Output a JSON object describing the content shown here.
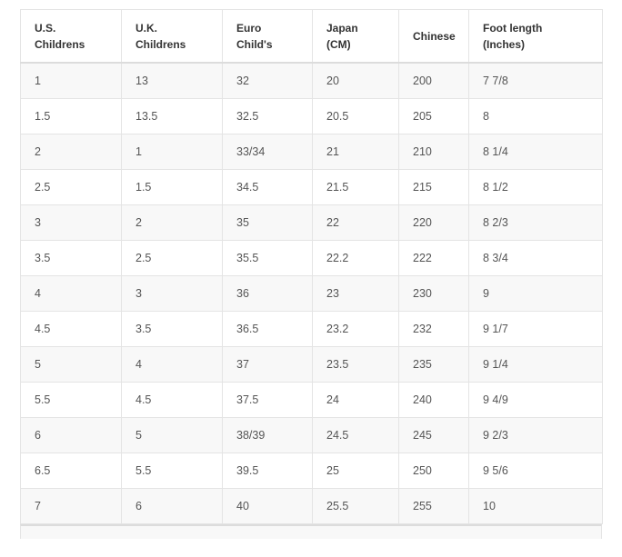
{
  "table": {
    "header": [
      "U.S.\nChildrens",
      "U.K.\nChildrens",
      "Euro\nChild's",
      "Japan\n(CM)",
      "Chinese",
      "Foot length\n(Inches)"
    ],
    "rows": [
      [
        "1",
        "13",
        "32",
        "20",
        "200",
        "7 7/8"
      ],
      [
        "1.5",
        "13.5",
        "32.5",
        "20.5",
        "205",
        "8"
      ],
      [
        "2",
        "1",
        "33/34",
        "21",
        "210",
        "8 1/4"
      ],
      [
        "2.5",
        "1.5",
        "34.5",
        "21.5",
        "215",
        "8 1/2"
      ],
      [
        "3",
        "2",
        "35",
        "22",
        "220",
        "8 2/3"
      ],
      [
        "3.5",
        "2.5",
        "35.5",
        "22.2",
        "222",
        "8 3/4"
      ],
      [
        "4",
        "3",
        "36",
        "23",
        "230",
        "9"
      ],
      [
        "4.5",
        "3.5",
        "36.5",
        "23.2",
        "232",
        "9 1/7"
      ],
      [
        "5",
        "4",
        "37",
        "23.5",
        "235",
        "9 1/4"
      ],
      [
        "5.5",
        "4.5",
        "37.5",
        "24",
        "240",
        "9 4/9"
      ],
      [
        "6",
        "5",
        "38/39",
        "24.5",
        "245",
        "9 2/3"
      ],
      [
        "6.5",
        "5.5",
        "39.5",
        "25",
        "250",
        "9 5/6"
      ],
      [
        "7",
        "6",
        "40",
        "25.5",
        "255",
        "10"
      ]
    ]
  }
}
